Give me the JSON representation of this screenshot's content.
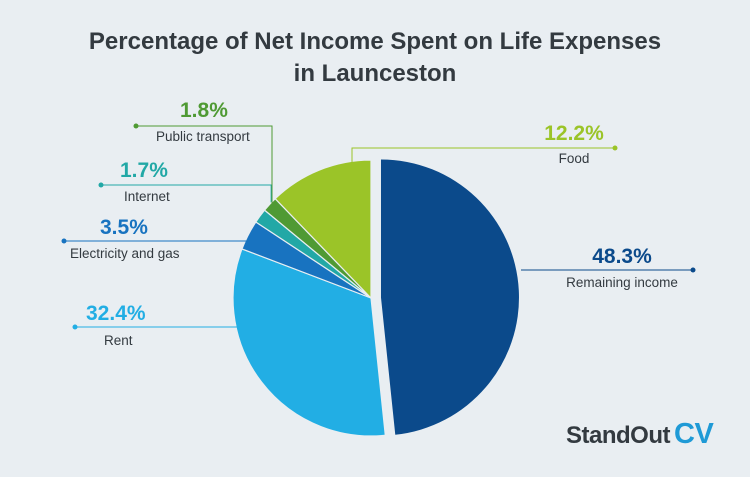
{
  "title_line1": "Percentage of Net Income Spent on Life Expenses",
  "title_line2": "in Launceston",
  "brand": {
    "main": "StandOut",
    "accent": "CV"
  },
  "chart_data": {
    "type": "pie",
    "title": "Percentage of Net Income Spent on Life Expenses in Launceston",
    "slices": [
      {
        "label": "Remaining income",
        "value": 48.3,
        "display": "48.3%",
        "color": "#0b4a8b",
        "exploded": true
      },
      {
        "label": "Rent",
        "value": 32.4,
        "display": "32.4%",
        "color": "#22aee4"
      },
      {
        "label": "Electricity and gas",
        "value": 3.5,
        "display": "3.5%",
        "color": "#1873c0"
      },
      {
        "label": "Internet",
        "value": 1.7,
        "display": "1.7%",
        "color": "#22a8a6"
      },
      {
        "label": "Public transport",
        "value": 1.8,
        "display": "1.8%",
        "color": "#4f9a34"
      },
      {
        "label": "Food",
        "value": 12.2,
        "display": "12.2%",
        "color": "#9bc428"
      }
    ]
  }
}
